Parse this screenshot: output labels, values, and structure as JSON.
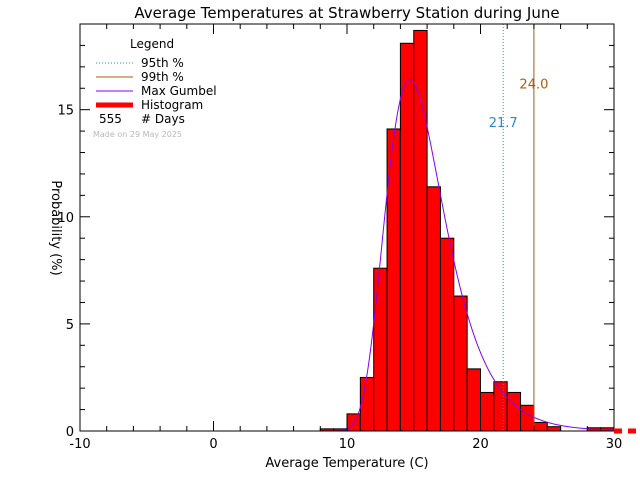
{
  "chart_data": {
    "type": "bar",
    "title": "Average Temperatures at Strawberry Station during June",
    "xlabel": "Average Temperature (C)",
    "ylabel": "Probability (%)",
    "xlim": [
      -10,
      30
    ],
    "ylim": [
      0,
      19
    ],
    "x_ticks": [
      -10,
      0,
      10,
      20,
      30
    ],
    "y_ticks": [
      0,
      5,
      10,
      15
    ],
    "bin_width": 1,
    "histogram": {
      "name": "Histogram",
      "color": "#ff0000",
      "bin_starts": [
        8,
        9,
        10,
        11,
        12,
        13,
        14,
        15,
        16,
        17,
        18,
        19,
        20,
        21,
        22,
        23,
        24,
        25,
        28,
        29
      ],
      "values": [
        0.1,
        0.1,
        0.8,
        2.5,
        7.6,
        14.1,
        18.1,
        18.7,
        11.4,
        9.0,
        6.3,
        2.9,
        1.8,
        2.3,
        1.8,
        1.2,
        0.4,
        0.2,
        0.15,
        0.15
      ]
    },
    "gumbel": {
      "name": "Max Gumbel",
      "color": "#8a00e6",
      "mode": 14.7,
      "scale": 2.2,
      "peak": 16.4
    },
    "lines": [
      {
        "name": "95th %",
        "value": 21.7,
        "label": "21.7",
        "color": "#1e8ed6",
        "style": "dotted",
        "label_y": 14.2
      },
      {
        "name": "99th %",
        "value": 24.0,
        "label": "24.0",
        "color": "#b05a10",
        "style": "solid",
        "label_y": 16.0
      }
    ],
    "legend": {
      "title": "Legend",
      "days_count": "555",
      "days_label": "# Days",
      "made_on": "Made on 29 May 2025",
      "placement": "top-left"
    }
  }
}
